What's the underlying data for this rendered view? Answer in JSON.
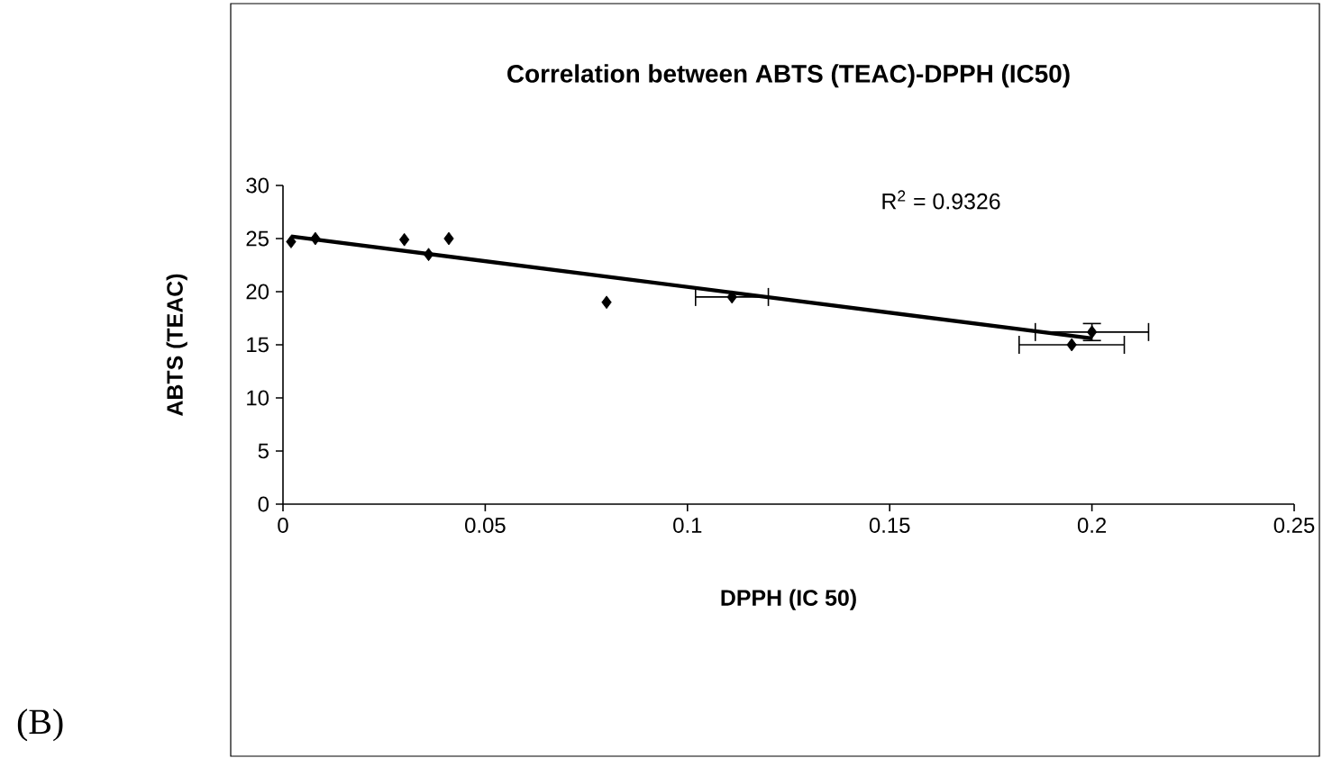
{
  "chart_data": {
    "type": "scatter",
    "title": "Correlation between ABTS (TEAC)-DPPH (IC50)",
    "xlabel": "DPPH (IC 50)",
    "ylabel": "ABTS (TEAC)",
    "xlim": [
      0,
      0.25
    ],
    "xticks": [
      0,
      0.05,
      0.1,
      0.15,
      0.2,
      0.25
    ],
    "ylim": [
      0,
      30
    ],
    "yticks": [
      0,
      5,
      10,
      15,
      20,
      25,
      30
    ],
    "marker": "diamond",
    "grid": false,
    "series": [
      {
        "color": "#000000",
        "x": [
          0.002,
          0.008,
          0.03,
          0.036,
          0.041,
          0.08,
          0.111,
          0.195,
          0.2
        ],
        "values": [
          24.7,
          25.0,
          24.9,
          23.5,
          25.0,
          19.0,
          19.5,
          15.0,
          16.2
        ],
        "xerrors": [
          null,
          null,
          null,
          null,
          null,
          null,
          0.009,
          0.013,
          0.014
        ],
        "errors": [
          null,
          null,
          null,
          null,
          null,
          null,
          null,
          null,
          0.8
        ]
      },
      {
        "type": "line",
        "color": "#000000",
        "marker": "none",
        "x": [
          0.002,
          0.2
        ],
        "values": [
          25.2,
          15.6
        ]
      }
    ],
    "annotations": [
      "R$^{2}$ = 0.9326",
      "(B)"
    ]
  }
}
